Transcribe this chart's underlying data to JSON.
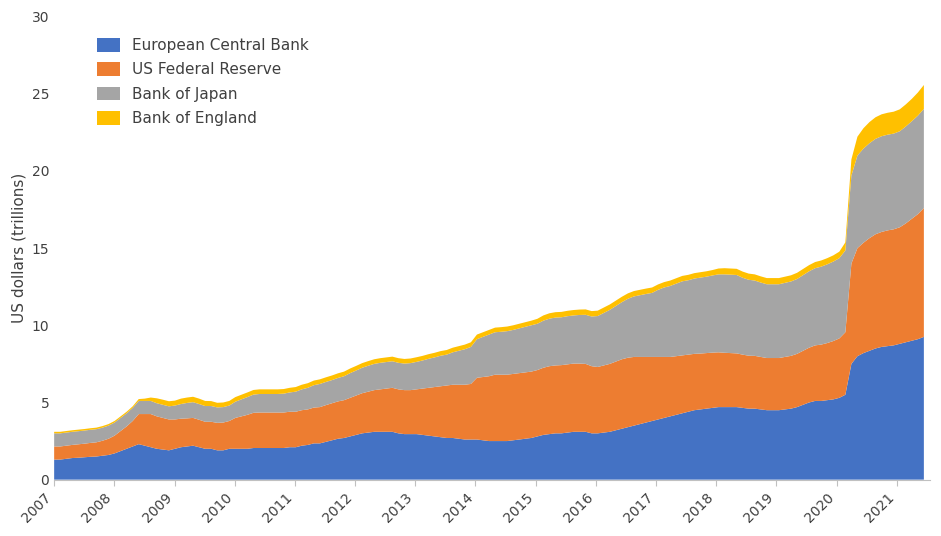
{
  "title": "",
  "ylabel": "US dollars (trillions)",
  "ylim": [
    0,
    30
  ],
  "yticks": [
    0,
    5,
    10,
    15,
    20,
    25,
    30
  ],
  "background_color": "#ffffff",
  "legend_labels": [
    "European Central Bank",
    "US Federal Reserve",
    "Bank of Japan",
    "Bank of England"
  ],
  "colors": [
    "#4472C4",
    "#ED7D31",
    "#A5A5A5",
    "#FFC000"
  ],
  "xtick_years": [
    2007,
    2008,
    2009,
    2010,
    2011,
    2012,
    2013,
    2014,
    2015,
    2016,
    2017,
    2018,
    2019,
    2020,
    2021
  ],
  "ecb": [
    1.3,
    1.3,
    1.35,
    1.4,
    1.42,
    1.45,
    1.48,
    1.5,
    1.55,
    1.6,
    1.7,
    1.85,
    2.0,
    2.15,
    2.3,
    2.2,
    2.1,
    2.0,
    1.95,
    1.9,
    2.0,
    2.1,
    2.15,
    2.2,
    2.1,
    2.0,
    2.0,
    1.9,
    1.9,
    2.0,
    2.0,
    2.0,
    2.0,
    2.05,
    2.05,
    2.05,
    2.05,
    2.05,
    2.05,
    2.1,
    2.1,
    2.2,
    2.25,
    2.35,
    2.35,
    2.45,
    2.55,
    2.65,
    2.7,
    2.8,
    2.9,
    3.0,
    3.05,
    3.1,
    3.1,
    3.1,
    3.1,
    3.0,
    2.95,
    2.95,
    2.95,
    2.9,
    2.85,
    2.8,
    2.75,
    2.7,
    2.7,
    2.65,
    2.6,
    2.6,
    2.6,
    2.55,
    2.5,
    2.5,
    2.5,
    2.5,
    2.55,
    2.6,
    2.65,
    2.7,
    2.8,
    2.9,
    2.95,
    3.0,
    3.0,
    3.05,
    3.1,
    3.1,
    3.1,
    3.0,
    3.0,
    3.05,
    3.1,
    3.2,
    3.3,
    3.4,
    3.5,
    3.6,
    3.7,
    3.8,
    3.9,
    4.0,
    4.1,
    4.2,
    4.3,
    4.4,
    4.5,
    4.55,
    4.6,
    4.65,
    4.7,
    4.7,
    4.7,
    4.7,
    4.65,
    4.6,
    4.6,
    4.55,
    4.5,
    4.5,
    4.5,
    4.55,
    4.6,
    4.7,
    4.85,
    5.0,
    5.1,
    5.1,
    5.15,
    5.2,
    5.3,
    5.5,
    7.5,
    8.0,
    8.2,
    8.35,
    8.5,
    8.6,
    8.65,
    8.7,
    8.8,
    8.9,
    9.0,
    9.1,
    9.25
  ],
  "fed": [
    0.85,
    0.85,
    0.85,
    0.85,
    0.87,
    0.88,
    0.9,
    0.92,
    0.97,
    1.05,
    1.15,
    1.3,
    1.45,
    1.65,
    1.95,
    2.05,
    2.15,
    2.1,
    2.05,
    2.0,
    1.9,
    1.85,
    1.82,
    1.8,
    1.78,
    1.75,
    1.75,
    1.78,
    1.8,
    1.8,
    2.0,
    2.1,
    2.2,
    2.28,
    2.3,
    2.3,
    2.3,
    2.3,
    2.3,
    2.3,
    2.3,
    2.3,
    2.3,
    2.32,
    2.35,
    2.38,
    2.4,
    2.42,
    2.45,
    2.5,
    2.55,
    2.6,
    2.65,
    2.7,
    2.75,
    2.8,
    2.85,
    2.85,
    2.85,
    2.85,
    2.9,
    3.0,
    3.1,
    3.2,
    3.3,
    3.4,
    3.45,
    3.5,
    3.55,
    3.6,
    4.0,
    4.1,
    4.2,
    4.3,
    4.3,
    4.3,
    4.3,
    4.3,
    4.3,
    4.3,
    4.3,
    4.35,
    4.4,
    4.4,
    4.42,
    4.42,
    4.42,
    4.42,
    4.4,
    4.35,
    4.3,
    4.35,
    4.4,
    4.45,
    4.5,
    4.5,
    4.45,
    4.35,
    4.25,
    4.15,
    4.05,
    3.95,
    3.85,
    3.8,
    3.75,
    3.7,
    3.65,
    3.62,
    3.6,
    3.58,
    3.55,
    3.52,
    3.5,
    3.48,
    3.45,
    3.43,
    3.42,
    3.4,
    3.38,
    3.38,
    3.38,
    3.4,
    3.42,
    3.45,
    3.5,
    3.55,
    3.6,
    3.65,
    3.7,
    3.78,
    3.85,
    4.05,
    6.5,
    7.0,
    7.15,
    7.3,
    7.4,
    7.45,
    7.5,
    7.52,
    7.55,
    7.7,
    7.9,
    8.1,
    8.35
  ],
  "boj": [
    0.85,
    0.85,
    0.85,
    0.85,
    0.85,
    0.85,
    0.85,
    0.85,
    0.85,
    0.85,
    0.85,
    0.85,
    0.85,
    0.85,
    0.85,
    0.85,
    0.85,
    0.85,
    0.85,
    0.85,
    0.9,
    0.95,
    1.0,
    1.02,
    1.02,
    1.02,
    1.02,
    1.0,
    1.0,
    1.0,
    1.05,
    1.1,
    1.15,
    1.18,
    1.2,
    1.2,
    1.2,
    1.2,
    1.22,
    1.25,
    1.3,
    1.35,
    1.4,
    1.45,
    1.5,
    1.5,
    1.5,
    1.52,
    1.55,
    1.6,
    1.62,
    1.65,
    1.68,
    1.7,
    1.72,
    1.72,
    1.72,
    1.72,
    1.72,
    1.75,
    1.78,
    1.82,
    1.88,
    1.92,
    1.98,
    2.0,
    2.1,
    2.2,
    2.3,
    2.4,
    2.5,
    2.6,
    2.7,
    2.75,
    2.78,
    2.82,
    2.85,
    2.9,
    2.95,
    3.0,
    3.0,
    3.05,
    3.08,
    3.1,
    3.1,
    3.12,
    3.12,
    3.15,
    3.18,
    3.22,
    3.3,
    3.4,
    3.5,
    3.6,
    3.7,
    3.82,
    3.92,
    4.0,
    4.08,
    4.15,
    4.35,
    4.5,
    4.6,
    4.7,
    4.8,
    4.82,
    4.88,
    4.92,
    4.95,
    5.0,
    5.05,
    5.08,
    5.08,
    5.08,
    4.98,
    4.92,
    4.88,
    4.82,
    4.78,
    4.78,
    4.78,
    4.8,
    4.82,
    4.85,
    4.9,
    4.95,
    5.0,
    5.05,
    5.1,
    5.15,
    5.2,
    5.3,
    5.7,
    6.0,
    6.1,
    6.15,
    6.18,
    6.2,
    6.2,
    6.2,
    6.22,
    6.28,
    6.32,
    6.38,
    6.42
  ],
  "boe": [
    0.1,
    0.1,
    0.1,
    0.1,
    0.1,
    0.1,
    0.1,
    0.1,
    0.1,
    0.1,
    0.1,
    0.1,
    0.1,
    0.1,
    0.12,
    0.15,
    0.22,
    0.32,
    0.33,
    0.33,
    0.32,
    0.35,
    0.35,
    0.35,
    0.35,
    0.33,
    0.32,
    0.3,
    0.3,
    0.3,
    0.3,
    0.3,
    0.3,
    0.3,
    0.3,
    0.3,
    0.3,
    0.3,
    0.3,
    0.3,
    0.3,
    0.3,
    0.3,
    0.3,
    0.3,
    0.3,
    0.3,
    0.3,
    0.3,
    0.3,
    0.3,
    0.3,
    0.3,
    0.3,
    0.3,
    0.3,
    0.3,
    0.3,
    0.3,
    0.3,
    0.3,
    0.3,
    0.3,
    0.3,
    0.3,
    0.3,
    0.3,
    0.3,
    0.3,
    0.3,
    0.3,
    0.3,
    0.3,
    0.3,
    0.3,
    0.3,
    0.3,
    0.3,
    0.3,
    0.3,
    0.32,
    0.34,
    0.35,
    0.35,
    0.35,
    0.35,
    0.35,
    0.35,
    0.35,
    0.35,
    0.35,
    0.35,
    0.35,
    0.35,
    0.35,
    0.35,
    0.35,
    0.35,
    0.35,
    0.35,
    0.35,
    0.35,
    0.35,
    0.35,
    0.35,
    0.35,
    0.35,
    0.35,
    0.35,
    0.35,
    0.38,
    0.4,
    0.4,
    0.4,
    0.4,
    0.4,
    0.4,
    0.4,
    0.4,
    0.4,
    0.4,
    0.4,
    0.4,
    0.4,
    0.4,
    0.4,
    0.4,
    0.4,
    0.4,
    0.4,
    0.42,
    0.52,
    1.05,
    1.22,
    1.32,
    1.37,
    1.4,
    1.42,
    1.42,
    1.42,
    1.42,
    1.43,
    1.45,
    1.5,
    1.55
  ]
}
